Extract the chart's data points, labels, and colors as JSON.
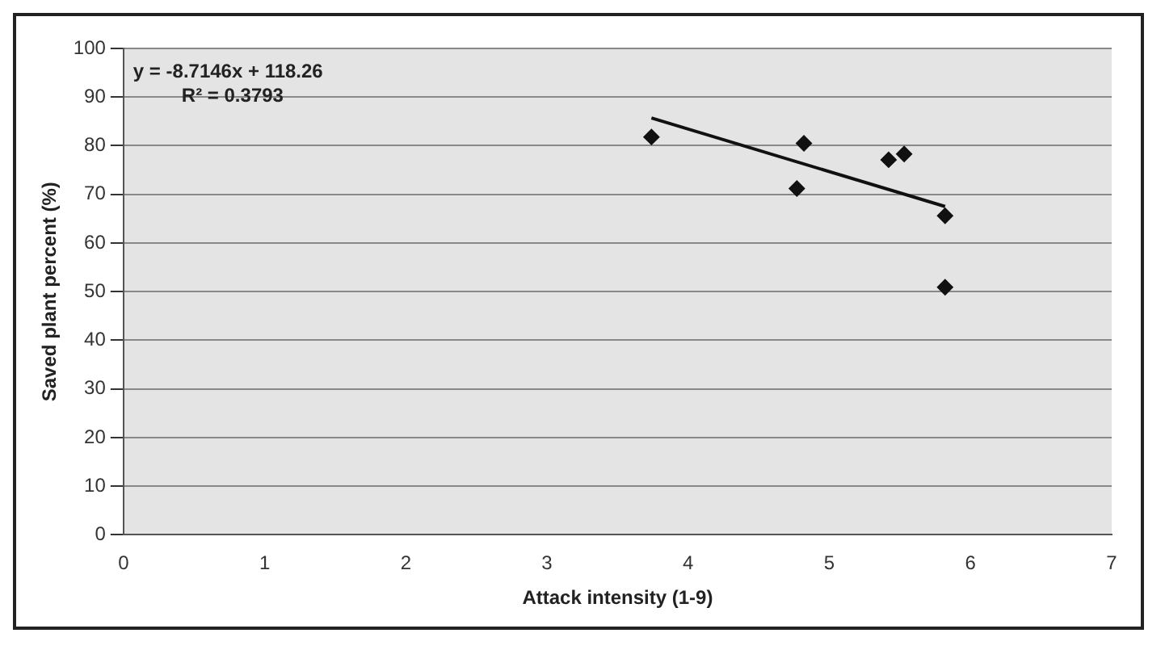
{
  "chart_data": {
    "type": "scatter",
    "xlabel": "Attack intensity (1-9)",
    "ylabel": "Saved plant percent (%)",
    "annotations": [
      "y = -8.7146x + 118.26",
      "R² = 0.3793"
    ],
    "series": [
      {
        "color": "#111111",
        "marker": "diamond",
        "x": [
          3.74,
          4.82,
          4.77,
          5.42,
          5.53,
          5.82,
          5.82
        ],
        "values": [
          81.8,
          80.5,
          71.2,
          77.1,
          78.3,
          65.6,
          50.9
        ]
      },
      {
        "type": "line",
        "color": "#111111",
        "marker": "none",
        "x": [
          3.74,
          5.82
        ],
        "values": [
          85.7,
          67.5
        ]
      }
    ],
    "xlim": [
      0,
      7
    ],
    "xticks": [
      0,
      1,
      2,
      3,
      4,
      5,
      6,
      7
    ],
    "ylim": [
      0,
      100
    ],
    "yticks": [
      0,
      10,
      20,
      30,
      40,
      50,
      60,
      70,
      80,
      90,
      100
    ],
    "grid": "y",
    "legend": false
  }
}
